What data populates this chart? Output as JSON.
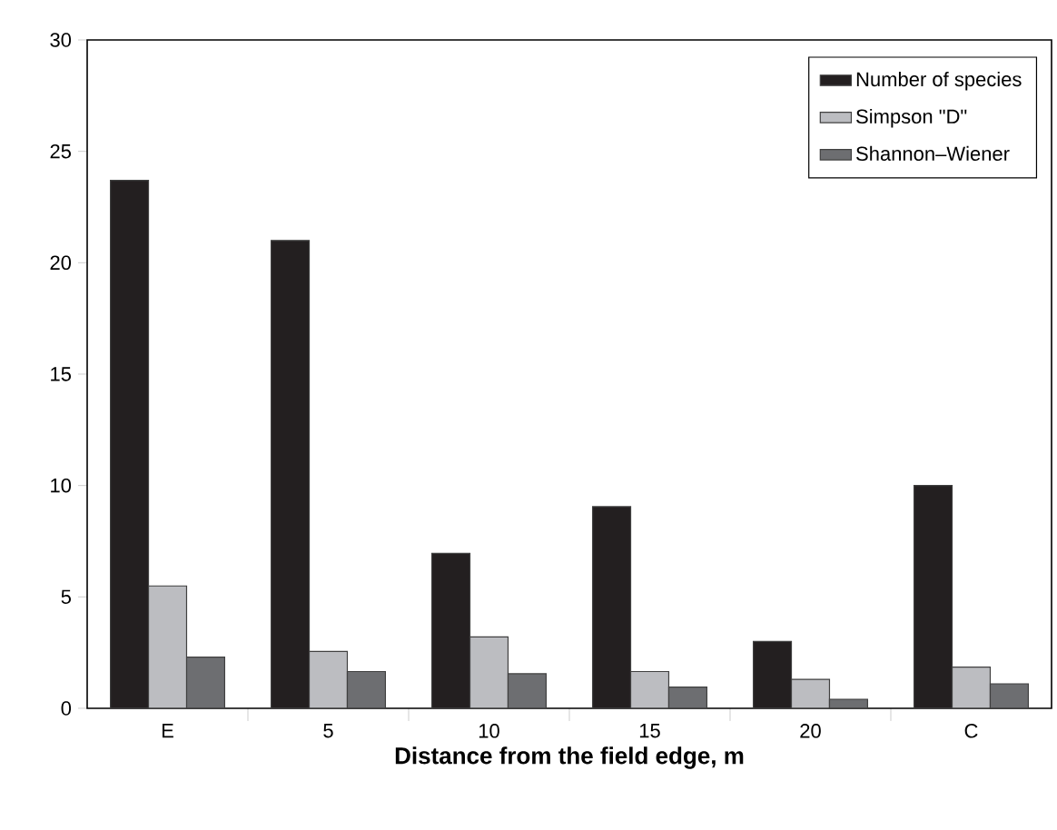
{
  "chart_data": {
    "type": "bar",
    "xlabel": "Distance from the field edge, m",
    "categories": [
      "E",
      "5",
      "10",
      "15",
      "20",
      "C"
    ],
    "series": [
      {
        "name": "Number of species",
        "color": "#231f20",
        "values": [
          23.7,
          21.0,
          6.95,
          9.05,
          3.0,
          10.0
        ]
      },
      {
        "name": "Simpson \"D\"",
        "color": "#bcbdc1",
        "values": [
          5.5,
          2.55,
          3.2,
          1.65,
          1.3,
          1.85
        ]
      },
      {
        "name": "Shannon–Wiener",
        "color": "#6d6e71",
        "values": [
          2.3,
          1.65,
          1.55,
          0.95,
          0.4,
          1.1
        ]
      }
    ],
    "ylim": [
      0,
      30
    ],
    "yticks": [
      0,
      5,
      10,
      15,
      20,
      25,
      30
    ],
    "grid": false,
    "legend": "top right"
  }
}
